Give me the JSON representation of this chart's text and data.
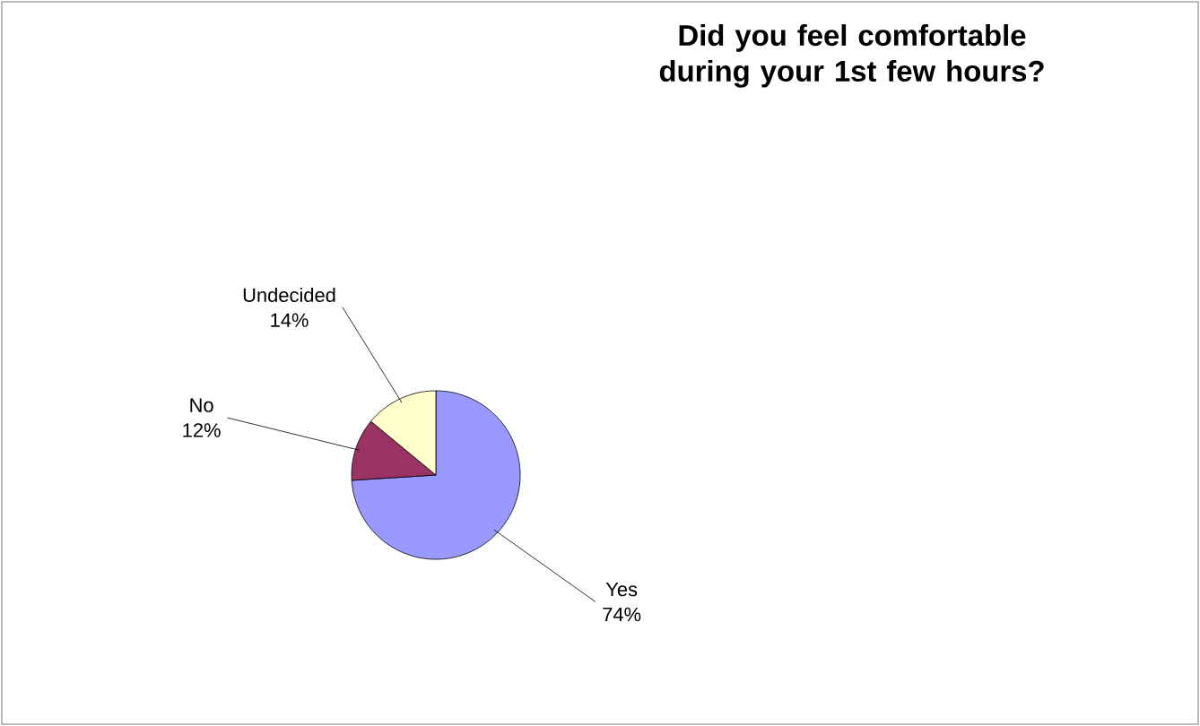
{
  "chart_data": {
    "type": "pie",
    "title": "Did you feel comfortable during your 1st few hours?",
    "categories": [
      "Yes",
      "No",
      "Undecided"
    ],
    "values": [
      74,
      12,
      14
    ],
    "colors": [
      "#9999ff",
      "#993366",
      "#ffffcc"
    ],
    "value_labels": [
      "74%",
      "12%",
      "14%"
    ]
  }
}
